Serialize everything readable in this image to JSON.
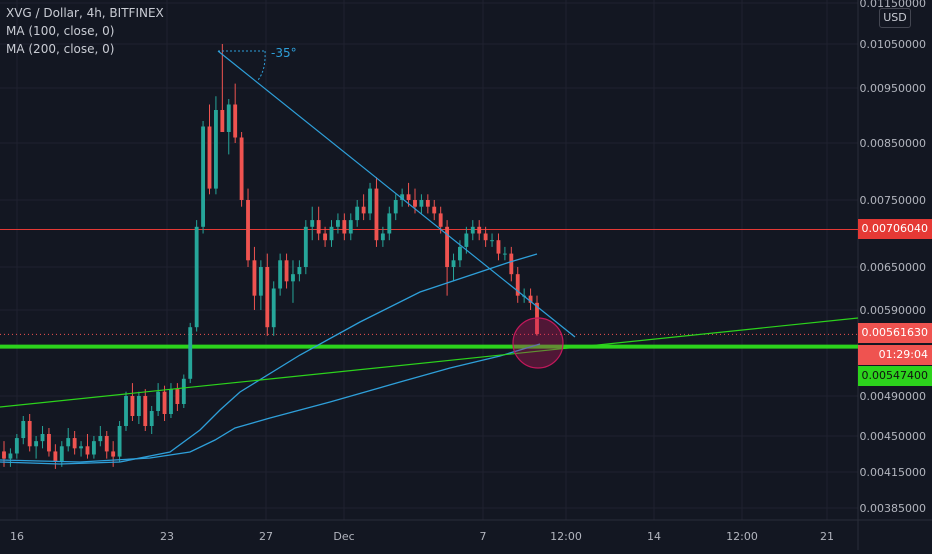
{
  "legend": {
    "symbol": "XVG / Dollar, 4h, BITFINEX",
    "ma100": "MA (100, close, 0)",
    "ma200": "MA (200, close, 0)"
  },
  "currency_button": "USD",
  "angle_label": "-35°",
  "price_labels": {
    "resistance": "0.00706040",
    "last_price": "0.00561630",
    "countdown": "01:29:04",
    "support": "0.00547400"
  },
  "colors": {
    "background": "#131722",
    "grid": "#1f2230",
    "up": "#26a69a",
    "down": "#ef5350",
    "trendline": "#2e9fd9",
    "ma": "#2e9fd9",
    "support": "#2cd31c",
    "resistance": "#e53935",
    "highlight_circle": "#c2185b"
  },
  "chart_data": {
    "type": "candlestick",
    "title": "XVG / Dollar, 4h, BITFINEX",
    "x_ticks": [
      "16",
      "23",
      "27",
      "Dec",
      "7",
      "12:00",
      "14",
      "12:00",
      "21"
    ],
    "y_ticks": [
      "0.01150000",
      "0.01050000",
      "0.00950000",
      "0.00850000",
      "0.00750000",
      "0.00650000",
      "0.00590000",
      "0.00490000",
      "0.00450000",
      "0.00415000",
      "0.00385000"
    ],
    "y_range": [
      0.00375,
      0.0117
    ],
    "candles": [
      [
        0.00435,
        0.00445,
        0.0042,
        0.00428
      ],
      [
        0.00428,
        0.00438,
        0.0042,
        0.00433
      ],
      [
        0.00433,
        0.00452,
        0.00428,
        0.00448
      ],
      [
        0.00448,
        0.0047,
        0.00442,
        0.00465
      ],
      [
        0.00465,
        0.00472,
        0.00435,
        0.0044
      ],
      [
        0.0044,
        0.0045,
        0.00428,
        0.00445
      ],
      [
        0.00445,
        0.0046,
        0.00438,
        0.00452
      ],
      [
        0.00452,
        0.00458,
        0.0043,
        0.00435
      ],
      [
        0.00435,
        0.00442,
        0.00418,
        0.00425
      ],
      [
        0.00425,
        0.00445,
        0.0042,
        0.0044
      ],
      [
        0.0044,
        0.00458,
        0.00435,
        0.00448
      ],
      [
        0.00448,
        0.00455,
        0.00432,
        0.00438
      ],
      [
        0.00438,
        0.00445,
        0.0043,
        0.0044
      ],
      [
        0.0044,
        0.00452,
        0.00428,
        0.00432
      ],
      [
        0.00432,
        0.0045,
        0.00428,
        0.00445
      ],
      [
        0.00445,
        0.0046,
        0.0044,
        0.0045
      ],
      [
        0.0045,
        0.00455,
        0.00428,
        0.00435
      ],
      [
        0.00435,
        0.00445,
        0.0042,
        0.0043
      ],
      [
        0.0043,
        0.00465,
        0.00425,
        0.0046
      ],
      [
        0.0046,
        0.00495,
        0.00455,
        0.0049
      ],
      [
        0.0049,
        0.00505,
        0.00465,
        0.0047
      ],
      [
        0.0047,
        0.00495,
        0.00462,
        0.0049
      ],
      [
        0.0049,
        0.00498,
        0.00455,
        0.0046
      ],
      [
        0.0046,
        0.0048,
        0.00452,
        0.00475
      ],
      [
        0.00475,
        0.00505,
        0.0047,
        0.00495
      ],
      [
        0.00495,
        0.00502,
        0.00465,
        0.00472
      ],
      [
        0.00472,
        0.00505,
        0.00468,
        0.00498
      ],
      [
        0.00498,
        0.00505,
        0.00475,
        0.00482
      ],
      [
        0.00482,
        0.00515,
        0.00478,
        0.0051
      ],
      [
        0.0051,
        0.00575,
        0.00505,
        0.0057
      ],
      [
        0.0057,
        0.0072,
        0.00565,
        0.0071
      ],
      [
        0.0071,
        0.0089,
        0.007,
        0.0088
      ],
      [
        0.0088,
        0.0092,
        0.0076,
        0.0077
      ],
      [
        0.0077,
        0.00935,
        0.0076,
        0.0091
      ],
      [
        0.0091,
        0.0105,
        0.0087,
        0.0087
      ],
      [
        0.0087,
        0.0093,
        0.0083,
        0.0092
      ],
      [
        0.0092,
        0.0096,
        0.0085,
        0.0086
      ],
      [
        0.0086,
        0.0087,
        0.0074,
        0.0075
      ],
      [
        0.0075,
        0.0077,
        0.0065,
        0.0066
      ],
      [
        0.0066,
        0.0068,
        0.0059,
        0.0061
      ],
      [
        0.0061,
        0.0066,
        0.0059,
        0.0065
      ],
      [
        0.0065,
        0.0067,
        0.0056,
        0.0057
      ],
      [
        0.0057,
        0.0063,
        0.0056,
        0.0062
      ],
      [
        0.0062,
        0.0067,
        0.0061,
        0.0066
      ],
      [
        0.0066,
        0.0067,
        0.0062,
        0.0063
      ],
      [
        0.0063,
        0.0066,
        0.006,
        0.0064
      ],
      [
        0.0064,
        0.0066,
        0.0063,
        0.0065
      ],
      [
        0.0065,
        0.0072,
        0.0064,
        0.0071
      ],
      [
        0.0071,
        0.0074,
        0.0069,
        0.0072
      ],
      [
        0.0072,
        0.0074,
        0.0069,
        0.007
      ],
      [
        0.007,
        0.0071,
        0.0068,
        0.0069
      ],
      [
        0.0069,
        0.0072,
        0.0068,
        0.0071
      ],
      [
        0.0071,
        0.0073,
        0.007,
        0.0072
      ],
      [
        0.0072,
        0.0073,
        0.0069,
        0.007
      ],
      [
        0.007,
        0.0073,
        0.0069,
        0.0072
      ],
      [
        0.0072,
        0.0075,
        0.0071,
        0.0074
      ],
      [
        0.0074,
        0.0076,
        0.0072,
        0.0073
      ],
      [
        0.0073,
        0.0078,
        0.0072,
        0.0077
      ],
      [
        0.0077,
        0.0079,
        0.0068,
        0.0069
      ],
      [
        0.0069,
        0.0071,
        0.0068,
        0.007
      ],
      [
        0.007,
        0.0074,
        0.0069,
        0.0073
      ],
      [
        0.0073,
        0.0076,
        0.0072,
        0.0075
      ],
      [
        0.0075,
        0.0077,
        0.0074,
        0.0076
      ],
      [
        0.0076,
        0.0078,
        0.0074,
        0.0075
      ],
      [
        0.0075,
        0.0077,
        0.0073,
        0.0074
      ],
      [
        0.0074,
        0.0076,
        0.0073,
        0.0075
      ],
      [
        0.0075,
        0.0076,
        0.0073,
        0.0074
      ],
      [
        0.0074,
        0.0075,
        0.0072,
        0.0073
      ],
      [
        0.0073,
        0.0074,
        0.007,
        0.0071
      ],
      [
        0.0071,
        0.0072,
        0.0061,
        0.0065
      ],
      [
        0.0065,
        0.0067,
        0.0063,
        0.0066
      ],
      [
        0.0066,
        0.0069,
        0.0065,
        0.0068
      ],
      [
        0.0068,
        0.0071,
        0.0067,
        0.007
      ],
      [
        0.007,
        0.0072,
        0.0069,
        0.0071
      ],
      [
        0.0071,
        0.0072,
        0.0069,
        0.007
      ],
      [
        0.007,
        0.0071,
        0.0068,
        0.0069
      ],
      [
        0.0069,
        0.007,
        0.0068,
        0.0069
      ],
      [
        0.0069,
        0.007,
        0.0066,
        0.0067
      ],
      [
        0.0067,
        0.0068,
        0.0066,
        0.0067
      ],
      [
        0.0067,
        0.0068,
        0.0063,
        0.0064
      ],
      [
        0.0064,
        0.0065,
        0.006,
        0.0061
      ],
      [
        0.0061,
        0.0062,
        0.006,
        0.0061
      ],
      [
        0.0061,
        0.0062,
        0.0059,
        0.006
      ],
      [
        0.006,
        0.0061,
        0.0056,
        0.00562
      ]
    ]
  }
}
